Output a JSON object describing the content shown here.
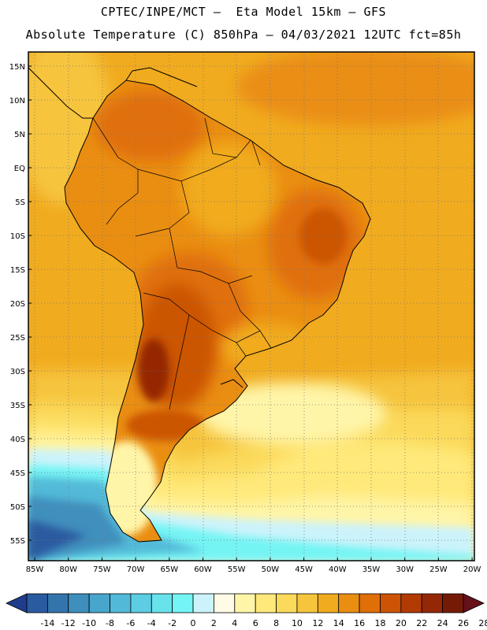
{
  "header": {
    "line1": "CPTEC/INPE/MCT —  Eta Model 15km — GFS",
    "line2": "Absolute Temperature (C) 850hPa — 04/03/2021 12UTC fct=85h"
  },
  "axes": {
    "lat_labels": [
      "15N",
      "10N",
      "5N",
      "EQ",
      "5S",
      "10S",
      "15S",
      "20S",
      "25S",
      "30S",
      "35S",
      "40S",
      "45S",
      "50S",
      "55S"
    ],
    "lon_labels": [
      "85W",
      "80W",
      "75W",
      "70W",
      "65W",
      "60W",
      "55W",
      "50W",
      "45W",
      "40W",
      "35W",
      "30W",
      "25W",
      "20W"
    ]
  },
  "colorbar": {
    "ticks": [
      "-14",
      "-12",
      "-10",
      "-8",
      "-6",
      "-4",
      "-2",
      "0",
      "2",
      "4",
      "6",
      "8",
      "10",
      "12",
      "14",
      "16",
      "18",
      "20",
      "22",
      "24",
      "26",
      "28"
    ],
    "colors": [
      "#1f3d8c",
      "#2a5aa0",
      "#3474ac",
      "#3f8fbd",
      "#48a6cc",
      "#52bad8",
      "#5ccde2",
      "#68e3ec",
      "#74f4f4",
      "#ccf3fb",
      "#fffbe6",
      "#fff5a8",
      "#ffe97a",
      "#fbd95a",
      "#f6c43d",
      "#f1ab1f",
      "#ea8e12",
      "#e06f08",
      "#cc5404",
      "#b23b04",
      "#942806",
      "#761a08",
      "#66101a"
    ]
  }
}
